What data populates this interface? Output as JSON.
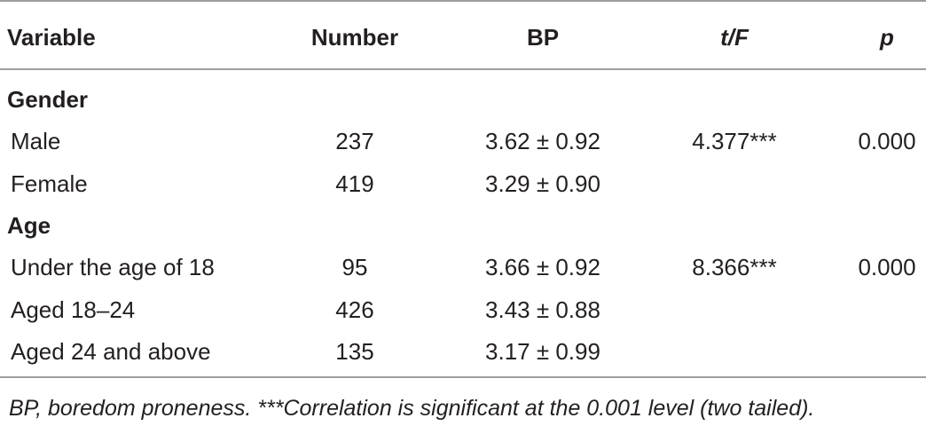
{
  "table": {
    "header": [
      "Variable",
      "Number",
      "BP",
      "t/F",
      "p"
    ],
    "sections": [
      {
        "title": "Gender",
        "rows": [
          {
            "variable": "Male",
            "number": 237,
            "bp": "3.62 ± 0.92",
            "tf": "4.377***",
            "p": "0.000"
          },
          {
            "variable": "Female",
            "number": 419,
            "bp": "3.29 ± 0.90"
          }
        ]
      },
      {
        "title": "Age",
        "rows": [
          {
            "variable": "Under the age of 18",
            "number": 95,
            "bp": "3.66 ± 0.92",
            "tf": "8.366***",
            "p": "0.000"
          },
          {
            "variable": "Aged 18–24",
            "number": 426,
            "bp": "3.43 ± 0.88"
          },
          {
            "variable": "Aged 24 and above",
            "number": 135,
            "bp": "3.17 ± 0.99"
          }
        ]
      }
    ],
    "footnote": "BP, boredom proneness. ***Correlation is significant at the 0.001 level (two tailed)."
  }
}
